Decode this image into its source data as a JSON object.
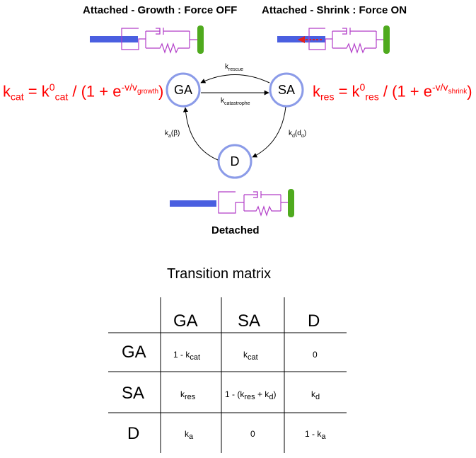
{
  "labels": {
    "growth": "Attached - Growth : Force OFF",
    "shrink": "Attached - Shrink : Force ON",
    "detached": "Detached"
  },
  "states": {
    "ga": "GA",
    "sa": "SA",
    "d": "D"
  },
  "edges": {
    "rescue": {
      "k": "k",
      "sub": "rescue"
    },
    "catastrophe": {
      "k": "k",
      "sub": "catastrophe"
    },
    "ka": {
      "k": "k",
      "sub": "a",
      "arg": "(β)"
    },
    "kd": {
      "k": "k",
      "sub": "d",
      "arg": "(d",
      "argsub": "α",
      "close": ")"
    }
  },
  "equations": {
    "kcat": {
      "k": "k",
      "sub": "cat",
      "eq": " = k",
      "sup0": "0",
      "sub0": "cat",
      "rest": " / (1 + e",
      "exp": "-v/v",
      "expsub": "growth",
      "end": ")"
    },
    "kres": {
      "k": "k",
      "sub": "res",
      "eq": " = k",
      "sup0": "0",
      "sub0": "res",
      "rest": " / (1 + e",
      "exp": "-v/v",
      "expsub": "shrink",
      "end": ")"
    }
  },
  "matrix": {
    "title": "Transition matrix",
    "col_headers": [
      "GA",
      "SA",
      "D"
    ],
    "row_headers": [
      "GA",
      "SA",
      "D"
    ],
    "cells": {
      "r0c0_pre": "1 - k",
      "r0c0_sub": "cat",
      "r0c1": "k",
      "r0c1_sub": "cat",
      "r0c2": "0",
      "r1c0": "k",
      "r1c0_sub": "res",
      "r1c1_pre": "1 - (k",
      "r1c1_sub": "res",
      "r1c1_mid": " + k",
      "r1c1_sub2": "d",
      "r1c1_end": ")",
      "r1c2": "k",
      "r1c2_sub": "d",
      "r2c0": "k",
      "r2c0_sub": "a",
      "r2c1": "0",
      "r2c2_pre": "1 - k",
      "r2c2_sub": "a"
    }
  },
  "colors": {
    "rod": "#4a5fe0",
    "anchor": "#4faa1e",
    "spring": "#b23ec8",
    "node": "#8b9be8",
    "equation": "#ff0000",
    "force_arrow": "#e02020"
  }
}
